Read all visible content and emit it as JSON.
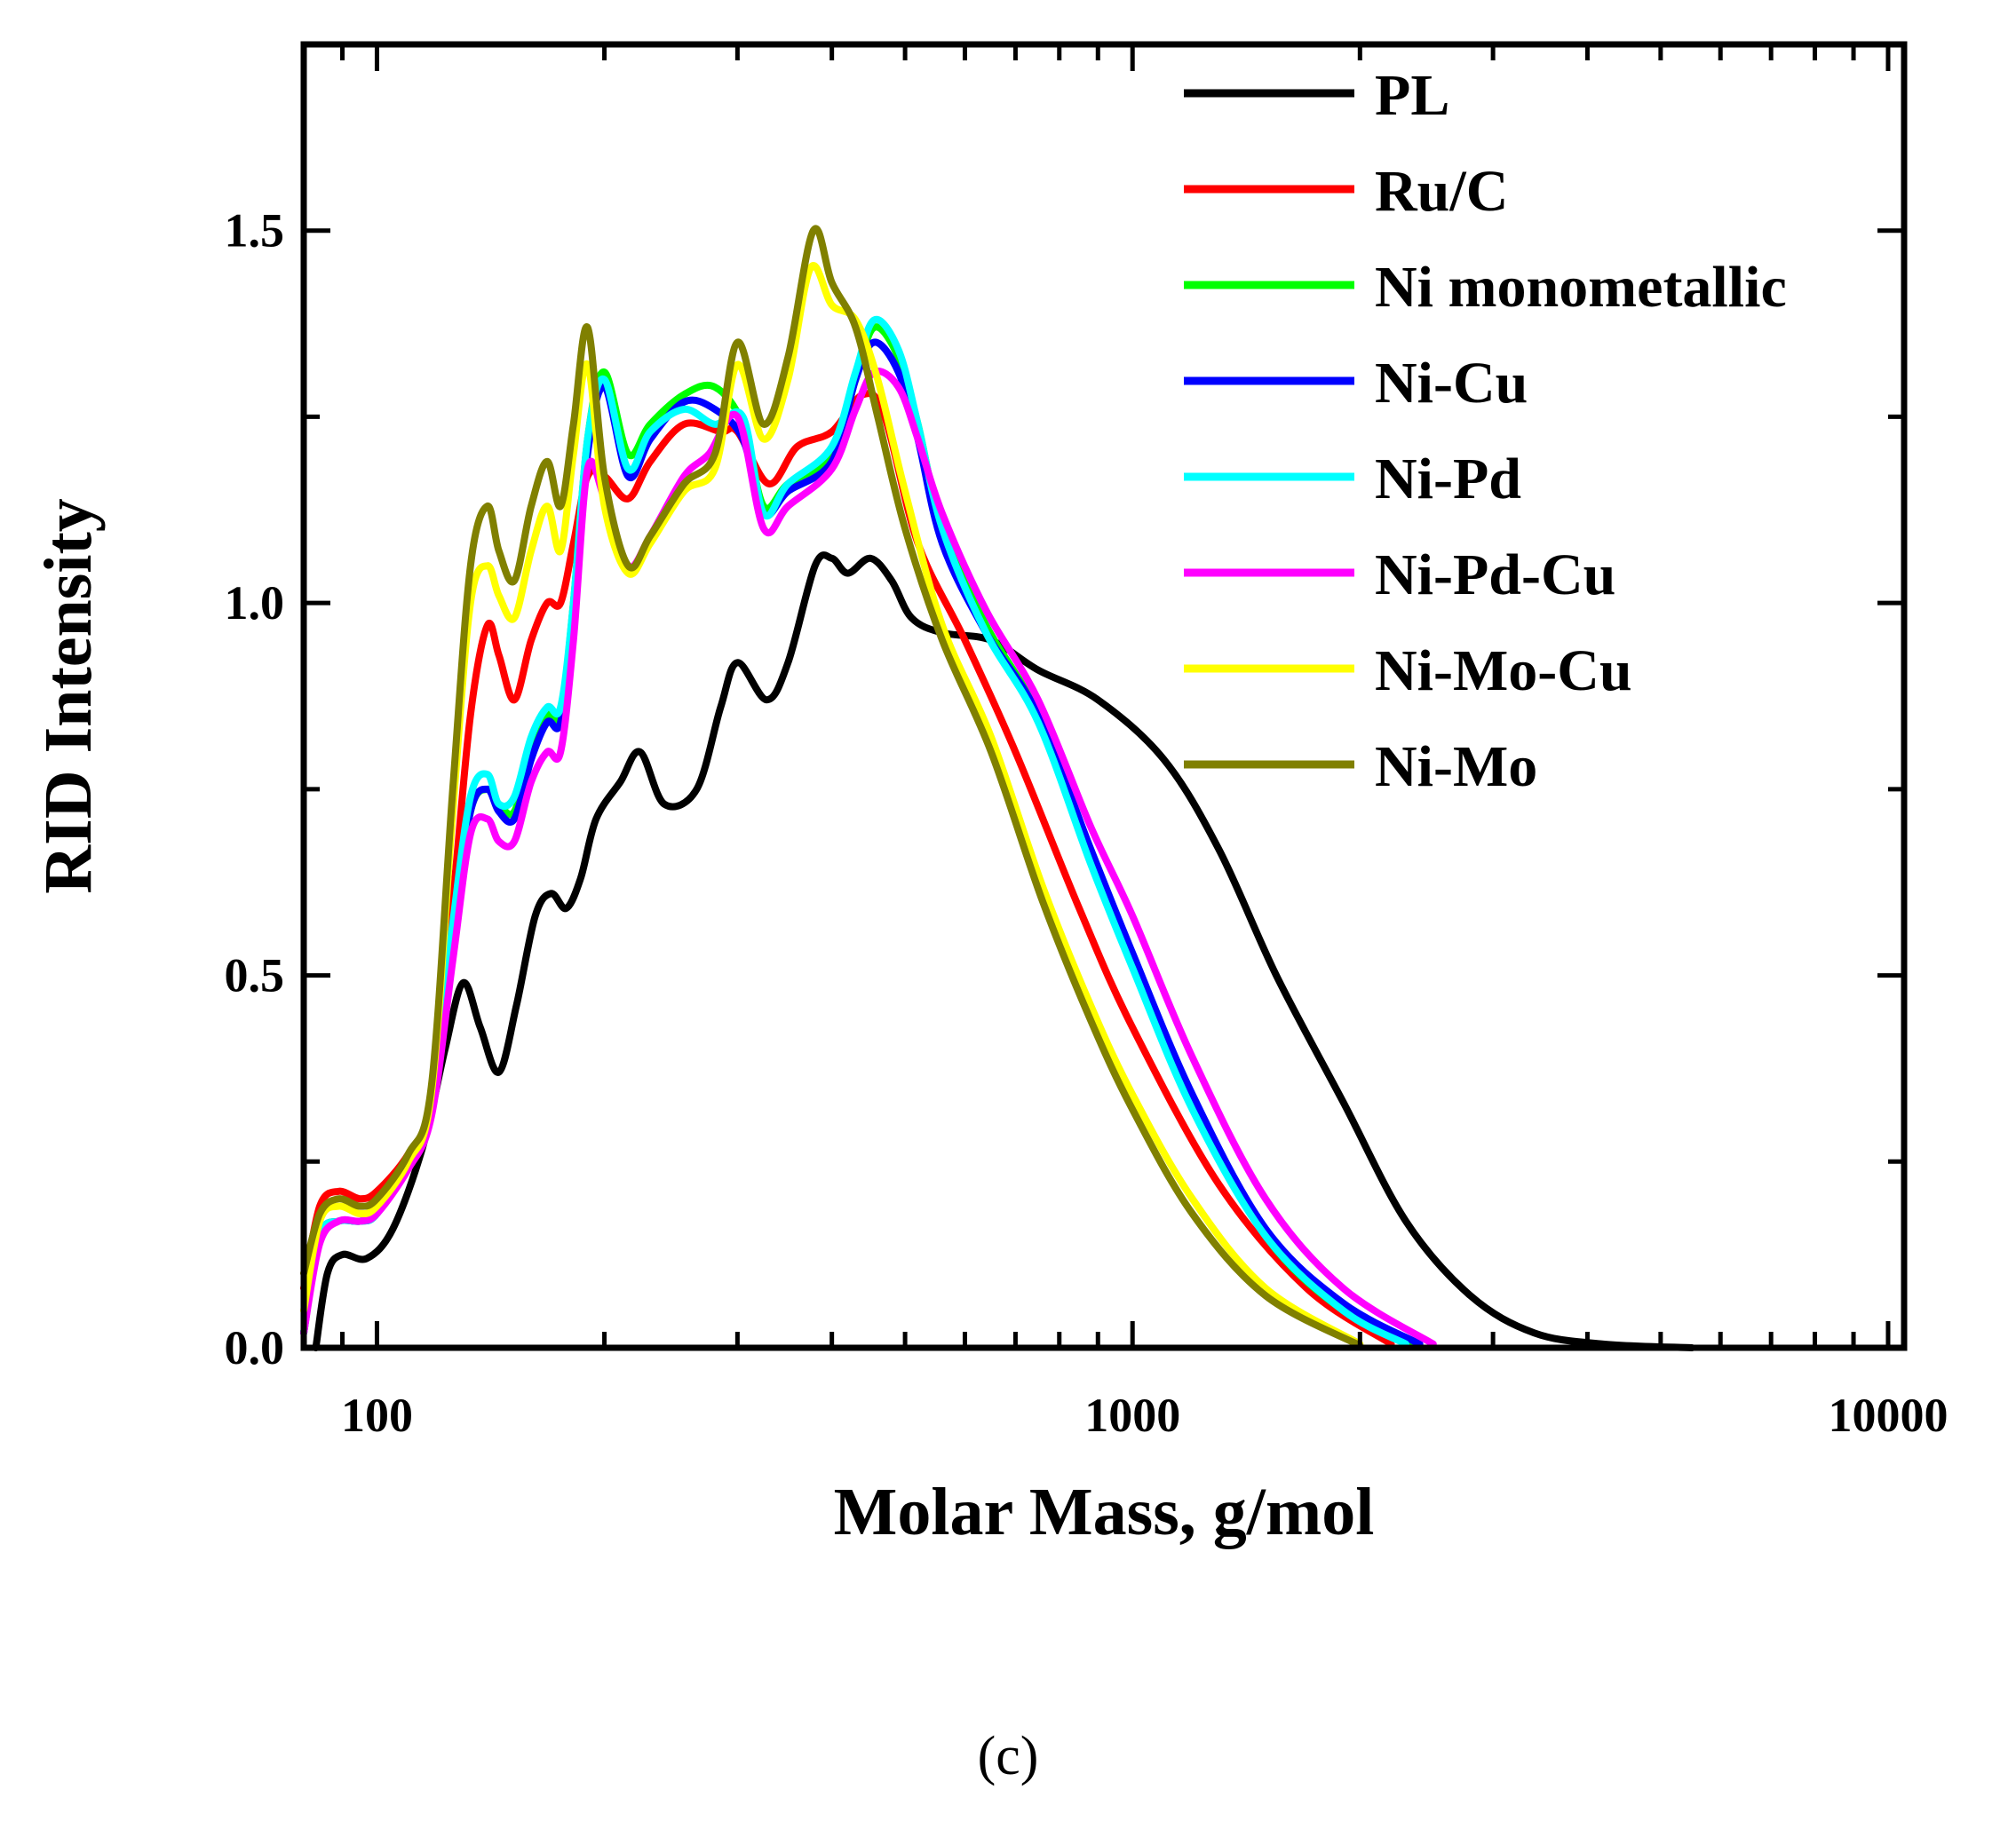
{
  "chart_data": {
    "type": "line",
    "title": "",
    "xlabel": "Molar Mass, g/mol",
    "ylabel": "RID Intensity",
    "x_scale": "log",
    "xlim": [
      80,
      10500
    ],
    "ylim": [
      0,
      1.75
    ],
    "x_ticks": [
      100,
      1000,
      10000
    ],
    "x_tick_labels": [
      "100",
      "1000",
      "10000"
    ],
    "y_ticks": [
      0,
      0.5,
      1.0,
      1.5
    ],
    "y_tick_labels": [
      "0.0",
      "0.5",
      "1.0",
      "1.5"
    ],
    "legend_position": "top-right",
    "caption": "(c)",
    "series": [
      {
        "name": "PL",
        "color": "#000000",
        "points": [
          [
            83,
            0
          ],
          [
            86,
            0.1
          ],
          [
            90,
            0.125
          ],
          [
            97,
            0.12
          ],
          [
            105,
            0.16
          ],
          [
            115,
            0.27
          ],
          [
            123,
            0.4
          ],
          [
            130,
            0.49
          ],
          [
            137,
            0.43
          ],
          [
            145,
            0.37
          ],
          [
            153,
            0.46
          ],
          [
            162,
            0.58
          ],
          [
            170,
            0.61
          ],
          [
            178,
            0.59
          ],
          [
            186,
            0.63
          ],
          [
            195,
            0.71
          ],
          [
            210,
            0.76
          ],
          [
            223,
            0.8
          ],
          [
            240,
            0.73
          ],
          [
            265,
            0.75
          ],
          [
            285,
            0.86
          ],
          [
            300,
            0.92
          ],
          [
            328,
            0.87
          ],
          [
            350,
            0.92
          ],
          [
            380,
            1.05
          ],
          [
            400,
            1.06
          ],
          [
            420,
            1.04
          ],
          [
            450,
            1.06
          ],
          [
            480,
            1.03
          ],
          [
            510,
            0.98
          ],
          [
            560,
            0.96
          ],
          [
            650,
            0.95
          ],
          [
            750,
            0.91
          ],
          [
            900,
            0.87
          ],
          [
            1100,
            0.79
          ],
          [
            1300,
            0.67
          ],
          [
            1550,
            0.5
          ],
          [
            1900,
            0.33
          ],
          [
            2300,
            0.17
          ],
          [
            2800,
            0.07
          ],
          [
            3400,
            0.02
          ],
          [
            4200,
            0.005
          ],
          [
            5500,
            0
          ]
        ]
      },
      {
        "name": "Ru/C",
        "color": "#ff0000",
        "points": [
          [
            80,
            0.08
          ],
          [
            84,
            0.19
          ],
          [
            89,
            0.21
          ],
          [
            95,
            0.2
          ],
          [
            100,
            0.21
          ],
          [
            110,
            0.26
          ],
          [
            118,
            0.33
          ],
          [
            126,
            0.6
          ],
          [
            133,
            0.85
          ],
          [
            140,
            0.97
          ],
          [
            145,
            0.93
          ],
          [
            152,
            0.87
          ],
          [
            160,
            0.95
          ],
          [
            168,
            1.0
          ],
          [
            175,
            1.0
          ],
          [
            182,
            1.08
          ],
          [
            190,
            1.17
          ],
          [
            200,
            1.17
          ],
          [
            215,
            1.14
          ],
          [
            230,
            1.19
          ],
          [
            255,
            1.24
          ],
          [
            285,
            1.23
          ],
          [
            300,
            1.23
          ],
          [
            330,
            1.16
          ],
          [
            360,
            1.21
          ],
          [
            400,
            1.23
          ],
          [
            440,
            1.28
          ],
          [
            470,
            1.25
          ],
          [
            520,
            1.08
          ],
          [
            600,
            0.95
          ],
          [
            700,
            0.8
          ],
          [
            850,
            0.59
          ],
          [
            1000,
            0.43
          ],
          [
            1300,
            0.22
          ],
          [
            1700,
            0.08
          ],
          [
            2200,
            0.005
          ]
        ]
      },
      {
        "name": "Ni monometallic",
        "color": "#00ff00",
        "points": [
          [
            80,
            0.02
          ],
          [
            84,
            0.15
          ],
          [
            89,
            0.17
          ],
          [
            95,
            0.17
          ],
          [
            100,
            0.18
          ],
          [
            110,
            0.25
          ],
          [
            118,
            0.33
          ],
          [
            126,
            0.55
          ],
          [
            133,
            0.72
          ],
          [
            140,
            0.75
          ],
          [
            145,
            0.73
          ],
          [
            152,
            0.72
          ],
          [
            160,
            0.8
          ],
          [
            168,
            0.85
          ],
          [
            175,
            0.85
          ],
          [
            182,
            1.0
          ],
          [
            190,
            1.22
          ],
          [
            200,
            1.31
          ],
          [
            215,
            1.2
          ],
          [
            230,
            1.24
          ],
          [
            255,
            1.28
          ],
          [
            280,
            1.29
          ],
          [
            305,
            1.24
          ],
          [
            325,
            1.13
          ],
          [
            350,
            1.16
          ],
          [
            400,
            1.2
          ],
          [
            430,
            1.3
          ],
          [
            455,
            1.37
          ],
          [
            490,
            1.33
          ],
          [
            520,
            1.24
          ],
          [
            560,
            1.1
          ],
          [
            640,
            0.97
          ],
          [
            750,
            0.85
          ],
          [
            880,
            0.66
          ],
          [
            1000,
            0.52
          ],
          [
            1200,
            0.33
          ],
          [
            1500,
            0.15
          ],
          [
            1900,
            0.05
          ],
          [
            2350,
            0.005
          ]
        ]
      },
      {
        "name": "Ni-Cu",
        "color": "#0000ff",
        "points": [
          [
            80,
            0.02
          ],
          [
            84,
            0.15
          ],
          [
            89,
            0.17
          ],
          [
            95,
            0.17
          ],
          [
            100,
            0.18
          ],
          [
            110,
            0.25
          ],
          [
            118,
            0.33
          ],
          [
            126,
            0.55
          ],
          [
            133,
            0.72
          ],
          [
            140,
            0.75
          ],
          [
            145,
            0.72
          ],
          [
            152,
            0.71
          ],
          [
            160,
            0.79
          ],
          [
            168,
            0.84
          ],
          [
            175,
            0.84
          ],
          [
            182,
            0.98
          ],
          [
            190,
            1.2
          ],
          [
            200,
            1.29
          ],
          [
            215,
            1.17
          ],
          [
            230,
            1.22
          ],
          [
            255,
            1.27
          ],
          [
            280,
            1.26
          ],
          [
            305,
            1.22
          ],
          [
            325,
            1.12
          ],
          [
            350,
            1.15
          ],
          [
            400,
            1.19
          ],
          [
            430,
            1.3
          ],
          [
            455,
            1.35
          ],
          [
            490,
            1.31
          ],
          [
            520,
            1.22
          ],
          [
            560,
            1.08
          ],
          [
            640,
            0.96
          ],
          [
            750,
            0.85
          ],
          [
            880,
            0.67
          ],
          [
            1000,
            0.53
          ],
          [
            1200,
            0.34
          ],
          [
            1500,
            0.16
          ],
          [
            1900,
            0.06
          ],
          [
            2400,
            0.005
          ]
        ]
      },
      {
        "name": "Ni-Pd",
        "color": "#00ffff",
        "points": [
          [
            80,
            0.02
          ],
          [
            84,
            0.15
          ],
          [
            89,
            0.17
          ],
          [
            95,
            0.17
          ],
          [
            100,
            0.18
          ],
          [
            110,
            0.25
          ],
          [
            118,
            0.33
          ],
          [
            126,
            0.57
          ],
          [
            133,
            0.74
          ],
          [
            140,
            0.77
          ],
          [
            145,
            0.73
          ],
          [
            152,
            0.74
          ],
          [
            160,
            0.82
          ],
          [
            168,
            0.86
          ],
          [
            175,
            0.86
          ],
          [
            182,
            1.0
          ],
          [
            190,
            1.22
          ],
          [
            200,
            1.3
          ],
          [
            215,
            1.18
          ],
          [
            230,
            1.23
          ],
          [
            255,
            1.26
          ],
          [
            280,
            1.24
          ],
          [
            305,
            1.25
          ],
          [
            325,
            1.12
          ],
          [
            350,
            1.16
          ],
          [
            400,
            1.21
          ],
          [
            430,
            1.31
          ],
          [
            455,
            1.38
          ],
          [
            490,
            1.34
          ],
          [
            520,
            1.24
          ],
          [
            560,
            1.1
          ],
          [
            640,
            0.96
          ],
          [
            750,
            0.84
          ],
          [
            880,
            0.65
          ],
          [
            1000,
            0.51
          ],
          [
            1200,
            0.32
          ],
          [
            1500,
            0.15
          ],
          [
            1900,
            0.05
          ],
          [
            2300,
            0.005
          ]
        ]
      },
      {
        "name": "Ni-Pd-Cu",
        "color": "#ff00ff",
        "points": [
          [
            80,
            0.02
          ],
          [
            84,
            0.14
          ],
          [
            89,
            0.17
          ],
          [
            95,
            0.17
          ],
          [
            100,
            0.18
          ],
          [
            110,
            0.24
          ],
          [
            118,
            0.31
          ],
          [
            126,
            0.52
          ],
          [
            133,
            0.69
          ],
          [
            140,
            0.71
          ],
          [
            145,
            0.68
          ],
          [
            152,
            0.68
          ],
          [
            160,
            0.76
          ],
          [
            168,
            0.8
          ],
          [
            175,
            0.8
          ],
          [
            182,
            0.95
          ],
          [
            190,
            1.18
          ],
          [
            200,
            1.14
          ],
          [
            215,
            1.05
          ],
          [
            230,
            1.09
          ],
          [
            255,
            1.17
          ],
          [
            275,
            1.2
          ],
          [
            300,
            1.25
          ],
          [
            325,
            1.1
          ],
          [
            350,
            1.13
          ],
          [
            400,
            1.18
          ],
          [
            430,
            1.26
          ],
          [
            455,
            1.31
          ],
          [
            490,
            1.29
          ],
          [
            520,
            1.22
          ],
          [
            560,
            1.12
          ],
          [
            640,
            0.99
          ],
          [
            750,
            0.87
          ],
          [
            880,
            0.7
          ],
          [
            1000,
            0.58
          ],
          [
            1200,
            0.39
          ],
          [
            1500,
            0.2
          ],
          [
            1900,
            0.08
          ],
          [
            2500,
            0.005
          ]
        ]
      },
      {
        "name": "Ni-Mo-Cu",
        "color": "#ffff00",
        "points": [
          [
            80,
            0.05
          ],
          [
            84,
            0.17
          ],
          [
            89,
            0.19
          ],
          [
            95,
            0.18
          ],
          [
            100,
            0.19
          ],
          [
            110,
            0.25
          ],
          [
            118,
            0.34
          ],
          [
            126,
            0.72
          ],
          [
            133,
            1.0
          ],
          [
            140,
            1.05
          ],
          [
            145,
            1.01
          ],
          [
            152,
            0.98
          ],
          [
            160,
            1.07
          ],
          [
            168,
            1.13
          ],
          [
            175,
            1.07
          ],
          [
            182,
            1.2
          ],
          [
            190,
            1.32
          ],
          [
            200,
            1.13
          ],
          [
            215,
            1.04
          ],
          [
            230,
            1.08
          ],
          [
            255,
            1.15
          ],
          [
            280,
            1.18
          ],
          [
            300,
            1.32
          ],
          [
            325,
            1.22
          ],
          [
            350,
            1.3
          ],
          [
            375,
            1.45
          ],
          [
            400,
            1.4
          ],
          [
            430,
            1.38
          ],
          [
            460,
            1.3
          ],
          [
            500,
            1.15
          ],
          [
            560,
            0.97
          ],
          [
            650,
            0.82
          ],
          [
            760,
            0.62
          ],
          [
            880,
            0.46
          ],
          [
            1000,
            0.34
          ],
          [
            1200,
            0.2
          ],
          [
            1500,
            0.08
          ],
          [
            2000,
            0.005
          ]
        ]
      },
      {
        "name": "Ni-Mo",
        "color": "#808000",
        "points": [
          [
            80,
            0.1
          ],
          [
            84,
            0.18
          ],
          [
            89,
            0.2
          ],
          [
            95,
            0.19
          ],
          [
            100,
            0.2
          ],
          [
            110,
            0.26
          ],
          [
            118,
            0.35
          ],
          [
            126,
            0.75
          ],
          [
            133,
            1.05
          ],
          [
            140,
            1.13
          ],
          [
            145,
            1.07
          ],
          [
            152,
            1.03
          ],
          [
            160,
            1.13
          ],
          [
            168,
            1.19
          ],
          [
            175,
            1.13
          ],
          [
            182,
            1.24
          ],
          [
            190,
            1.37
          ],
          [
            200,
            1.17
          ],
          [
            215,
            1.05
          ],
          [
            230,
            1.09
          ],
          [
            255,
            1.16
          ],
          [
            280,
            1.2
          ],
          [
            300,
            1.35
          ],
          [
            325,
            1.24
          ],
          [
            350,
            1.33
          ],
          [
            378,
            1.5
          ],
          [
            400,
            1.43
          ],
          [
            430,
            1.37
          ],
          [
            460,
            1.25
          ],
          [
            500,
            1.1
          ],
          [
            560,
            0.95
          ],
          [
            650,
            0.8
          ],
          [
            760,
            0.6
          ],
          [
            880,
            0.44
          ],
          [
            1000,
            0.32
          ],
          [
            1200,
            0.18
          ],
          [
            1500,
            0.07
          ],
          [
            2000,
            0.003
          ]
        ]
      }
    ]
  }
}
